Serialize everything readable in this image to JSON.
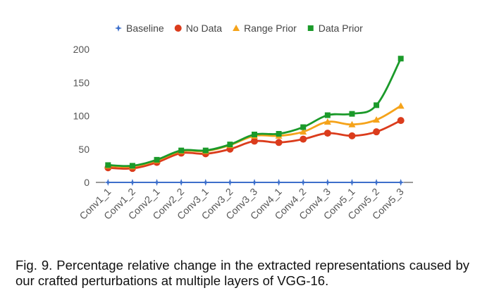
{
  "chart_data": {
    "type": "line",
    "categories": [
      "Conv1_1",
      "Conv1_2",
      "Conv2_1",
      "Conv2_2",
      "Conv3_1",
      "Conv3_2",
      "Conv3_3",
      "Conv4_1",
      "Conv4_2",
      "Conv4_3",
      "Conv5_1",
      "Conv5_2",
      "Conv5_3"
    ],
    "ylim": [
      0,
      200
    ],
    "yticks": [
      0,
      50,
      100,
      150,
      200
    ],
    "grid": false,
    "legend_position": "top",
    "series": [
      {
        "name": "Baseline",
        "color": "#3d6fcb",
        "marker": "star",
        "values": [
          0,
          0,
          0,
          0,
          0,
          0,
          0,
          0,
          0,
          0,
          0,
          0,
          0
        ]
      },
      {
        "name": "No Data",
        "color": "#db3c1c",
        "marker": "circle",
        "values": [
          22,
          21,
          30,
          44,
          43,
          50,
          62,
          60,
          65,
          74,
          70,
          76,
          93
        ]
      },
      {
        "name": "Range Prior",
        "color": "#f5a31a",
        "marker": "triangle",
        "values": [
          25,
          24,
          33,
          47,
          47,
          56,
          70,
          70,
          76,
          91,
          87,
          94,
          115
        ]
      },
      {
        "name": "Data Prior",
        "color": "#1b9a2a",
        "marker": "square",
        "values": [
          26,
          25,
          34,
          48,
          48,
          57,
          72,
          73,
          83,
          101,
          103,
          116,
          186
        ]
      }
    ]
  },
  "caption": "Fig. 9. Percentage relative change in the extracted representations caused by our crafted perturbations at multiple layers of VGG-16."
}
